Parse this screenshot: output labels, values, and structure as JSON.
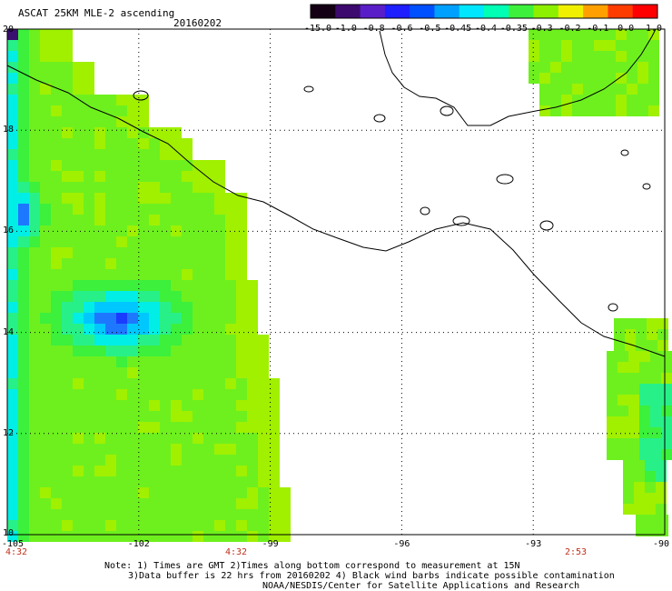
{
  "header": {
    "title": "ASCAT 25KM MLE-2 ascending",
    "date": "20160202"
  },
  "colorbar": {
    "labels": [
      "-15.0",
      "-1.0",
      "-0.8",
      "-0.6",
      "-0.5",
      "-0.45",
      "-0.4",
      "-0.35",
      "-0.3",
      "-0.2",
      "-0.1",
      "0.0",
      "1.0"
    ],
    "colors": [
      "#140014",
      "#3c0a6e",
      "#5a1ec8",
      "#1e1eff",
      "#0050ff",
      "#00a0ff",
      "#00e6ff",
      "#00ffb4",
      "#3cf03c",
      "#8cf000",
      "#f0f000",
      "#ffa000",
      "#ff3c00",
      "#ff0000"
    ]
  },
  "map": {
    "lon_range": [
      -105,
      -90
    ],
    "lat_range": [
      10,
      20
    ],
    "lat_labels": [
      "20",
      "18",
      "16",
      "14",
      "12",
      "10"
    ],
    "lon_labels": [
      "-105",
      "-102",
      "-99",
      "-96",
      "-93",
      "-90"
    ],
    "time_labels": [
      "4:32",
      "4:32",
      "2:53"
    ]
  },
  "notes": [
    "Note: 1) Times are GMT 2)Times along bottom correspond to measurement at 15N",
    "3)Data buffer is 22 hrs from 20160202 4) Black wind barbs indicate possible contamination",
    "NOAA/NESDIS/Center for Satellite Applications and Research"
  ]
}
